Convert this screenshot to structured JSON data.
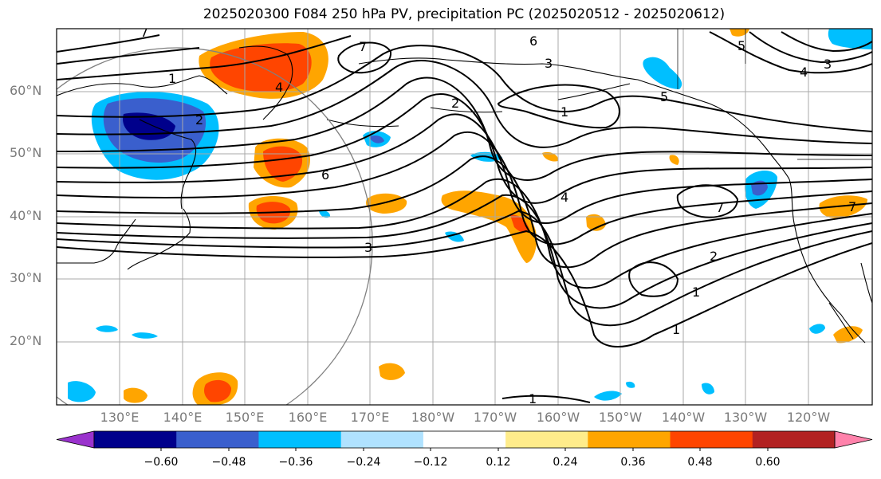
{
  "title": "2025020300 F084 250 hPa PV, precipitation PC (2025020512 - 2025020612)",
  "lat_labels": [
    "60°N",
    "50°N",
    "40°N",
    "30°N",
    "20°N"
  ],
  "lon_labels": [
    "130°E",
    "140°E",
    "150°E",
    "160°E",
    "170°E",
    "180°W",
    "170°W",
    "160°W",
    "150°W",
    "140°W",
    "130°W",
    "120°W"
  ],
  "colorbar": {
    "tick_labels": [
      "−0.60",
      "−0.48",
      "−0.36",
      "−0.24",
      "−0.12",
      "0.12",
      "0.24",
      "0.36",
      "0.48",
      "0.60"
    ],
    "colors": [
      "#9a32cd",
      "#00008b",
      "#3a5fcd",
      "#00bfff",
      "#b0e2ff",
      "#ffffff",
      "#ffec8b",
      "#ffa500",
      "#ff4500",
      "#b22222",
      "#ff82ab"
    ]
  },
  "contour_labels": [
    "7",
    "6",
    "7",
    "5",
    "4",
    "3",
    "1",
    "2",
    "2",
    "1",
    "6",
    "7",
    "4",
    "3",
    "2",
    "1",
    "1",
    "1",
    "7",
    "3",
    "4",
    "5"
  ]
}
